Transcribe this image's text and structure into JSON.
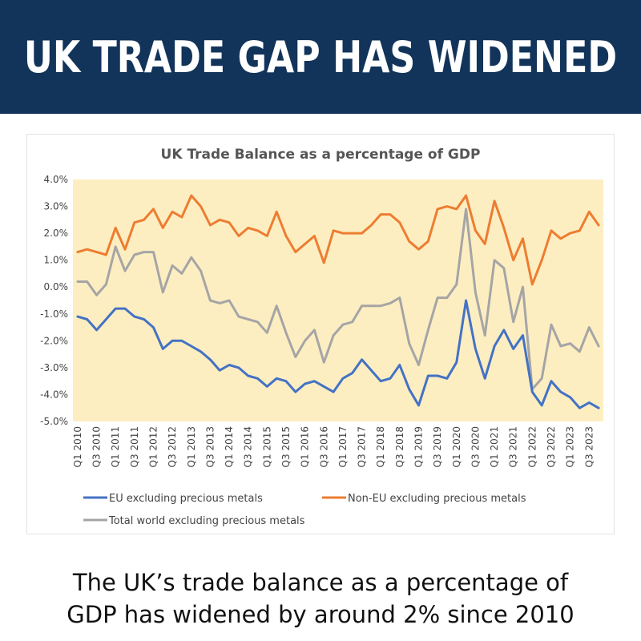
{
  "headline": "UK TRADE GAP HAS WIDENED",
  "caption": {
    "line1": "The UK’s trade balance as a percentage of",
    "line2": "GDP has widened by around 2% since 2010"
  },
  "colors": {
    "banner": "#12345a",
    "plot_background": "#fdeec2",
    "eu": "#4472c4",
    "non_eu": "#ed7d31",
    "total": "#a5a5a5"
  },
  "chart_data": {
    "type": "line",
    "title": "UK Trade Balance as a percentage of GDP",
    "xlabel": "",
    "ylabel": "",
    "ylim": [
      -5.0,
      4.0
    ],
    "y_ticks": [
      "4.0%",
      "3.0%",
      "2.0%",
      "1.0%",
      "0.0%",
      "-1.0%",
      "-2.0%",
      "-3.0%",
      "-4.0%",
      "-5.0%"
    ],
    "y_tick_values": [
      4,
      3,
      2,
      1,
      0,
      -1,
      -2,
      -3,
      -4,
      -5
    ],
    "x_labels": [
      "Q1 2010",
      "Q3 2010",
      "Q1 2011",
      "Q3 2011",
      "Q1 2012",
      "Q3 2012",
      "Q1 2013",
      "Q3 2013",
      "Q1 2014",
      "Q3 2014",
      "Q1 2015",
      "Q3 2015",
      "Q1 2016",
      "Q3 2016",
      "Q1 2017",
      "Q3 2017",
      "Q1 2018",
      "Q3 2018",
      "Q1 2019",
      "Q3 2019",
      "Q1 2020",
      "Q3 2020",
      "Q1 2021",
      "Q3 2021",
      "Q1 2022",
      "Q3 2022",
      "Q1 2023",
      "Q3 2023"
    ],
    "x_quarters": [
      "Q1 2010",
      "Q2 2010",
      "Q3 2010",
      "Q4 2010",
      "Q1 2011",
      "Q2 2011",
      "Q3 2011",
      "Q4 2011",
      "Q1 2012",
      "Q2 2012",
      "Q3 2012",
      "Q4 2012",
      "Q1 2013",
      "Q2 2013",
      "Q3 2013",
      "Q4 2013",
      "Q1 2014",
      "Q2 2014",
      "Q3 2014",
      "Q4 2014",
      "Q1 2015",
      "Q2 2015",
      "Q3 2015",
      "Q4 2015",
      "Q1 2016",
      "Q2 2016",
      "Q3 2016",
      "Q4 2016",
      "Q1 2017",
      "Q2 2017",
      "Q3 2017",
      "Q4 2017",
      "Q1 2018",
      "Q2 2018",
      "Q3 2018",
      "Q4 2018",
      "Q1 2019",
      "Q2 2019",
      "Q3 2019",
      "Q4 2019",
      "Q1 2020",
      "Q2 2020",
      "Q3 2020",
      "Q4 2020",
      "Q1 2021",
      "Q2 2021",
      "Q3 2021",
      "Q4 2021",
      "Q1 2022",
      "Q2 2022",
      "Q3 2022",
      "Q4 2022",
      "Q1 2023",
      "Q2 2023",
      "Q3 2023",
      "Q4 2023"
    ],
    "grid": false,
    "legend_position": "bottom",
    "series": [
      {
        "name": "EU excluding precious metals",
        "color": "#4472c4",
        "values": [
          -1.1,
          -1.2,
          -1.6,
          -1.2,
          -0.8,
          -0.8,
          -1.1,
          -1.2,
          -1.5,
          -2.3,
          -2.0,
          -2.0,
          -2.2,
          -2.4,
          -2.7,
          -3.1,
          -2.9,
          -3.0,
          -3.3,
          -3.4,
          -3.7,
          -3.4,
          -3.5,
          -3.9,
          -3.6,
          -3.5,
          -3.7,
          -3.9,
          -3.4,
          -3.2,
          -2.7,
          -3.1,
          -3.5,
          -3.4,
          -2.9,
          -3.8,
          -4.4,
          -3.3,
          -3.3,
          -3.4,
          -2.8,
          -0.5,
          -2.3,
          -3.4,
          -2.2,
          -1.6,
          -2.3,
          -1.8,
          -3.9,
          -4.4,
          -3.5,
          -3.9,
          -4.1,
          -4.5,
          -4.3,
          -4.5
        ]
      },
      {
        "name": "Non-EU excluding precious metals",
        "color": "#ed7d31",
        "values": [
          1.3,
          1.4,
          1.3,
          1.2,
          2.2,
          1.4,
          2.4,
          2.5,
          2.9,
          2.2,
          2.8,
          2.6,
          3.4,
          3.0,
          2.3,
          2.5,
          2.4,
          1.9,
          2.2,
          2.1,
          1.9,
          2.8,
          1.9,
          1.3,
          1.6,
          1.9,
          0.9,
          2.1,
          2.0,
          2.0,
          2.0,
          2.3,
          2.7,
          2.7,
          2.4,
          1.7,
          1.4,
          1.7,
          2.9,
          3.0,
          2.9,
          3.4,
          2.1,
          1.6,
          3.2,
          2.2,
          1.0,
          1.8,
          0.1,
          1.0,
          2.1,
          1.8,
          2.0,
          2.1,
          2.8,
          2.3
        ]
      },
      {
        "name": "Total world excluding precious metals",
        "color": "#a5a5a5",
        "values": [
          0.2,
          0.2,
          -0.3,
          0.1,
          1.5,
          0.6,
          1.2,
          1.3,
          1.3,
          -0.2,
          0.8,
          0.5,
          1.1,
          0.6,
          -0.5,
          -0.6,
          -0.5,
          -1.1,
          -1.2,
          -1.3,
          -1.7,
          -0.7,
          -1.7,
          -2.6,
          -2.0,
          -1.6,
          -2.8,
          -1.8,
          -1.4,
          -1.3,
          -0.7,
          -0.7,
          -0.7,
          -0.6,
          -0.4,
          -2.1,
          -2.9,
          -1.6,
          -0.4,
          -0.4,
          0.1,
          2.9,
          -0.2,
          -1.8,
          1.0,
          0.7,
          -1.3,
          0.0,
          -3.8,
          -3.4,
          -1.4,
          -2.2,
          -2.1,
          -2.4,
          -1.5,
          -2.2
        ]
      }
    ]
  }
}
